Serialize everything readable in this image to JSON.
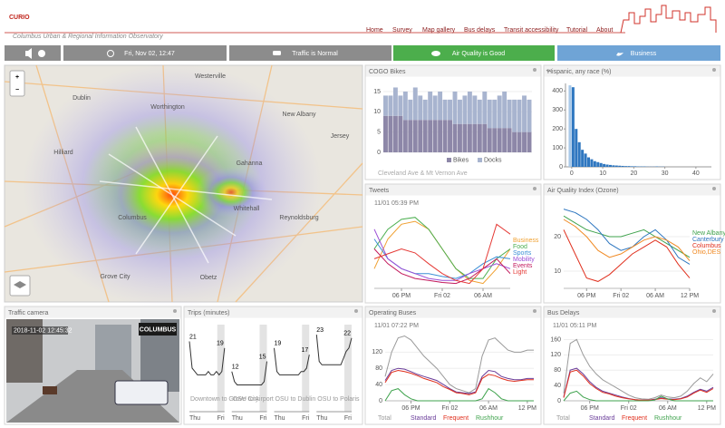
{
  "header": {
    "logo": "CURIO",
    "subtitle": "Columbus Urban & Regional Information Observatory",
    "nav": [
      "Home",
      "Survey",
      "Map gallery",
      "Bus delays",
      "Transit accessibility",
      "Tutorial",
      "About"
    ]
  },
  "status": {
    "time": "Fri, Nov 02, 12:47",
    "traffic": "Traffic is Normal",
    "air": "Air Quality is Good",
    "mode": "Business"
  },
  "map": {
    "zoom_in": "+",
    "zoom_out": "−",
    "places": [
      "Westerville",
      "Dublin",
      "Worthington",
      "New Albany",
      "Hilliard",
      "Gahanna",
      "Columbus",
      "Whitehall",
      "Reynoldsburg",
      "Grove City",
      "Obetz",
      "Jersey"
    ]
  },
  "cogo": {
    "type": "bar",
    "title": "COGO Bikes",
    "station": "Cleveland Ave & Mt Vernon Ave",
    "ylim": [
      0,
      17
    ],
    "yticks": [
      0,
      5,
      10,
      15
    ],
    "series": [
      {
        "name": "Bikes",
        "color": "#8d87a8",
        "values": [
          9,
          9,
          9,
          9,
          8,
          8,
          8,
          8,
          8,
          8,
          8,
          8,
          8,
          8,
          7,
          7,
          7,
          7,
          7,
          7,
          7,
          6,
          6,
          6,
          6,
          6,
          5,
          5,
          5,
          5
        ]
      },
      {
        "name": "Docks",
        "color": "#a8b4cf",
        "values": [
          5,
          5,
          7,
          5,
          7,
          5,
          8,
          6,
          5,
          7,
          6,
          7,
          5,
          5,
          8,
          6,
          7,
          8,
          7,
          6,
          8,
          7,
          7,
          8,
          9,
          7,
          8,
          8,
          9,
          8
        ]
      }
    ]
  },
  "hispanic": {
    "type": "histogram",
    "title": "Hispanic, any race (%)",
    "color": "#2f77c0",
    "highlight": {
      "bin": 0,
      "color": "#a9c9e8"
    },
    "bins": [
      -1,
      0,
      1,
      2,
      3,
      4,
      5,
      6,
      7,
      8,
      9,
      10,
      11,
      12,
      13,
      14,
      15,
      16,
      17,
      18,
      19,
      20,
      21,
      22,
      23,
      24,
      25,
      26,
      27,
      28,
      29,
      30
    ],
    "counts": [
      430,
      420,
      200,
      130,
      90,
      70,
      50,
      40,
      30,
      25,
      20,
      15,
      12,
      10,
      8,
      7,
      6,
      5,
      4,
      4,
      3,
      3,
      2,
      2,
      2,
      1,
      1,
      1,
      2,
      1,
      1
    ],
    "xlim": [
      -2,
      45
    ],
    "xticks": [
      0,
      10,
      20,
      30,
      40
    ],
    "ylim": [
      0,
      440
    ],
    "yticks": [
      0,
      100,
      200,
      300,
      400
    ]
  },
  "tweets": {
    "type": "line",
    "title": "Tweets",
    "time": "11/01 05:39 PM",
    "legend": "right",
    "xlim": [
      0,
      10
    ],
    "ylim": [
      0,
      8
    ],
    "xticks": [
      {
        "value": 2,
        "label": "06 PM"
      },
      {
        "value": 5,
        "label": "Fri 02"
      },
      {
        "value": 8,
        "label": "06 AM"
      }
    ],
    "series": [
      {
        "name": "Business",
        "color": "#f0a030",
        "values": [
          2,
          5,
          6.5,
          6.8,
          6,
          4,
          2,
          0.8,
          0.5,
          2,
          4
        ]
      },
      {
        "name": "Food",
        "color": "#4caf50",
        "values": [
          4,
          6,
          7,
          7.2,
          6,
          4,
          2,
          1,
          1,
          3,
          4
        ]
      },
      {
        "name": "Sports",
        "color": "#3b8fd6",
        "values": [
          5,
          3,
          2,
          1.5,
          1.5,
          1.2,
          1,
          1.5,
          2.5,
          3.2,
          3
        ]
      },
      {
        "name": "Mobility",
        "color": "#9c4fd6",
        "values": [
          6,
          3,
          2,
          1.5,
          1,
          0.8,
          0.8,
          1.5,
          2,
          2.5,
          2
        ]
      },
      {
        "name": "Events",
        "color": "#c2185b",
        "values": [
          4,
          2.5,
          1.5,
          1,
          0.8,
          0.6,
          0.5,
          1,
          2,
          3,
          1.5
        ]
      },
      {
        "name": "Light",
        "color": "#e53935",
        "values": [
          3,
          3.5,
          4,
          3.6,
          2.5,
          1.5,
          0.8,
          0.5,
          2,
          6.5,
          5.5
        ]
      }
    ]
  },
  "aqi": {
    "type": "line",
    "title": "Air Quality Index (Ozone)",
    "legend": "right",
    "xlim": [
      0,
      11
    ],
    "ylim": [
      5,
      30
    ],
    "yticks": [
      10,
      20
    ],
    "xticks": [
      {
        "value": 2,
        "label": "06 PM"
      },
      {
        "value": 5,
        "label": "Fri 02"
      },
      {
        "value": 8,
        "label": "06 AM"
      },
      {
        "value": 11,
        "label": "12 PM"
      }
    ],
    "series": [
      {
        "name": "New Albany",
        "color": "#3fa34d",
        "values": [
          26,
          24,
          22,
          21,
          20,
          20,
          21,
          22,
          20,
          18,
          16,
          14
        ]
      },
      {
        "name": "Canterbury",
        "color": "#2f77c0",
        "values": [
          28,
          27,
          25,
          22,
          18,
          16,
          17,
          20,
          22,
          19,
          14,
          12
        ]
      },
      {
        "name": "Columbus",
        "color": "#e0301e",
        "values": [
          22,
          15,
          8,
          7,
          9,
          12,
          15,
          17,
          19,
          17,
          12,
          8
        ]
      },
      {
        "name": "Ohio,DES",
        "color": "#f08a24",
        "values": [
          25,
          23,
          20,
          16,
          14,
          15,
          17,
          19,
          20,
          19,
          17,
          13
        ]
      }
    ]
  },
  "camera": {
    "title": "Traffic camera",
    "timestamp": "2018-11-02 12:45:32",
    "logo": "COLUMBUS"
  },
  "trips": {
    "title": "Trips (minutes)",
    "ylim": [
      0,
      26
    ],
    "x_labels": [
      "Thu",
      "Fri"
    ],
    "routes": [
      {
        "name": "Downtown to Grove City",
        "values": [
          21,
          13,
          12,
          11,
          11,
          11,
          11,
          12,
          11,
          11,
          12,
          11,
          12,
          19
        ]
      },
      {
        "name": "OSU to Airport",
        "values": [
          12,
          9,
          8,
          8,
          8,
          8,
          8,
          8,
          8,
          8,
          8,
          8,
          9,
          15
        ]
      },
      {
        "name": "OSU to Dublin",
        "values": [
          19,
          12,
          11,
          11,
          11,
          11,
          11,
          11,
          11,
          11,
          12,
          12,
          13,
          17
        ]
      },
      {
        "name": "OSU to Polaris",
        "values": [
          23,
          15,
          14,
          14,
          14,
          14,
          14,
          14,
          14,
          14,
          16,
          18,
          19,
          22
        ]
      }
    ]
  },
  "buses": {
    "type": "line",
    "title": "Operating Buses",
    "time": "11/01 07:22 PM",
    "legend": "bottom",
    "xlim": [
      0,
      23
    ],
    "ylim": [
      0,
      170
    ],
    "yticks": [
      0,
      40,
      80,
      120
    ],
    "xticks": [
      {
        "value": 4,
        "label": "06 PM"
      },
      {
        "value": 10,
        "label": "Fri 02"
      },
      {
        "value": 16,
        "label": "06 AM"
      },
      {
        "value": 22,
        "label": "12 PM"
      }
    ],
    "series": [
      {
        "name": "Total",
        "color": "#9a9a9a",
        "values": [
          60,
          120,
          155,
          160,
          150,
          130,
          110,
          95,
          80,
          60,
          40,
          30,
          25,
          20,
          30,
          110,
          150,
          155,
          140,
          125,
          120,
          120,
          125,
          125
        ]
      },
      {
        "name": "Standard",
        "color": "#6a3d9a",
        "values": [
          50,
          75,
          80,
          78,
          72,
          65,
          60,
          55,
          50,
          40,
          30,
          22,
          20,
          18,
          22,
          60,
          75,
          72,
          60,
          55,
          52,
          52,
          55,
          55
        ]
      },
      {
        "name": "Frequent",
        "color": "#e0301e",
        "values": [
          45,
          70,
          75,
          72,
          68,
          62,
          55,
          50,
          45,
          35,
          28,
          20,
          18,
          15,
          20,
          55,
          65,
          62,
          55,
          50,
          48,
          50,
          52,
          52
        ]
      },
      {
        "name": "Rushhour",
        "color": "#3fa34d",
        "values": [
          0,
          25,
          30,
          15,
          5,
          0,
          0,
          0,
          0,
          0,
          0,
          0,
          0,
          0,
          0,
          5,
          30,
          20,
          5,
          0,
          0,
          0,
          0,
          0
        ]
      }
    ]
  },
  "delays": {
    "type": "line",
    "title": "Bus Delays",
    "time": "11/01 05:11 PM",
    "legend": "bottom",
    "xlim": [
      0,
      23
    ],
    "ylim": [
      0,
      180
    ],
    "yticks": [
      0,
      40,
      80,
      120,
      160
    ],
    "xticks": [
      {
        "value": 4,
        "label": "06 PM"
      },
      {
        "value": 10,
        "label": "Fri 02"
      },
      {
        "value": 16,
        "label": "06 AM"
      },
      {
        "value": 22,
        "label": "12 PM"
      }
    ],
    "series": [
      {
        "name": "Total",
        "color": "#9a9a9a",
        "values": [
          20,
          150,
          160,
          120,
          90,
          70,
          55,
          45,
          35,
          25,
          15,
          8,
          5,
          4,
          8,
          15,
          10,
          8,
          12,
          25,
          45,
          60,
          50,
          70
        ]
      },
      {
        "name": "Standard",
        "color": "#6a3d9a",
        "values": [
          10,
          80,
          85,
          70,
          50,
          35,
          25,
          20,
          15,
          10,
          6,
          3,
          2,
          2,
          4,
          8,
          5,
          4,
          6,
          12,
          22,
          30,
          25,
          35
        ]
      },
      {
        "name": "Frequent",
        "color": "#e0301e",
        "values": [
          8,
          75,
          80,
          65,
          45,
          32,
          22,
          18,
          12,
          8,
          5,
          3,
          2,
          2,
          3,
          6,
          4,
          3,
          5,
          10,
          20,
          28,
          22,
          32
        ]
      },
      {
        "name": "Rushhour",
        "color": "#3fa34d",
        "values": [
          0,
          20,
          25,
          10,
          3,
          0,
          0,
          0,
          0,
          0,
          0,
          0,
          0,
          0,
          2,
          12,
          5,
          0,
          0,
          0,
          0,
          0,
          0,
          0
        ]
      }
    ]
  }
}
